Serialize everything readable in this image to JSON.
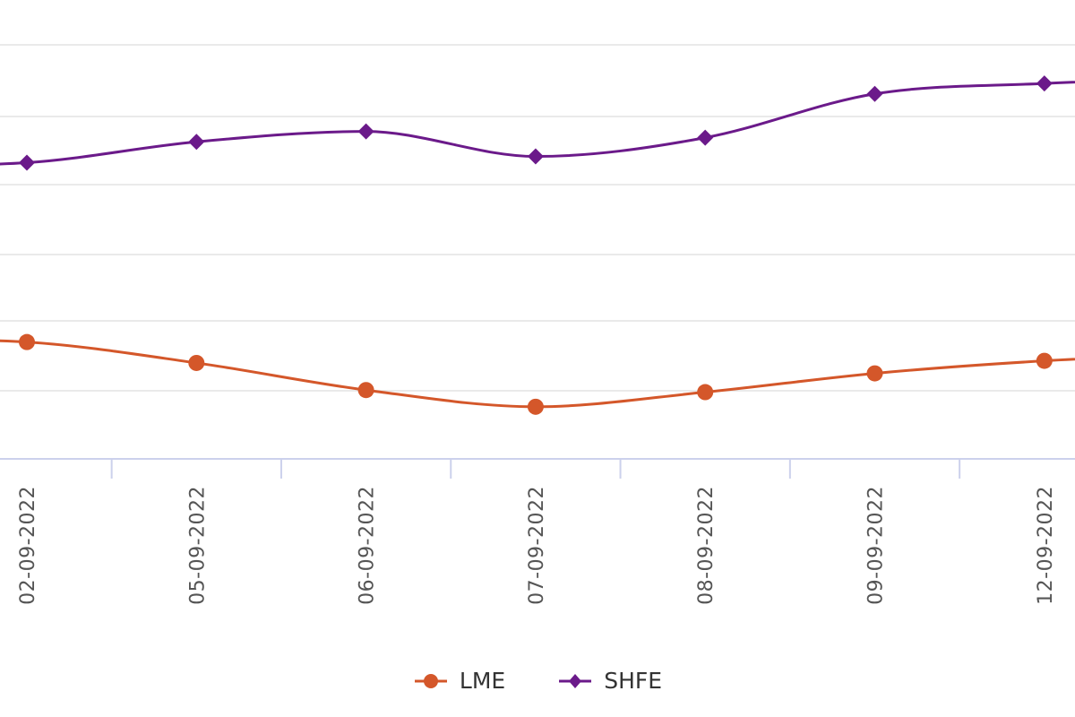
{
  "chart_data": {
    "type": "line",
    "smooth": true,
    "categories": [
      "02-09-2022",
      "05-09-2022",
      "06-09-2022",
      "07-09-2022",
      "08-09-2022",
      "09-09-2022",
      "12-09-2022"
    ],
    "series": [
      {
        "name": "LME",
        "color": "#D4572A",
        "marker": "circle",
        "values": [
          7.3,
          6.8,
          6.15,
          5.75,
          6.1,
          6.55,
          6.85
        ]
      },
      {
        "name": "SHFE",
        "color": "#6B1A8A",
        "marker": "diamond",
        "values": [
          11.6,
          12.1,
          12.35,
          11.75,
          12.2,
          13.25,
          13.5
        ]
      }
    ],
    "ylim": [
      4.5,
      15.5
    ],
    "grid": true,
    "legend_position": "bottom-center",
    "xtick_rotation": -90
  }
}
